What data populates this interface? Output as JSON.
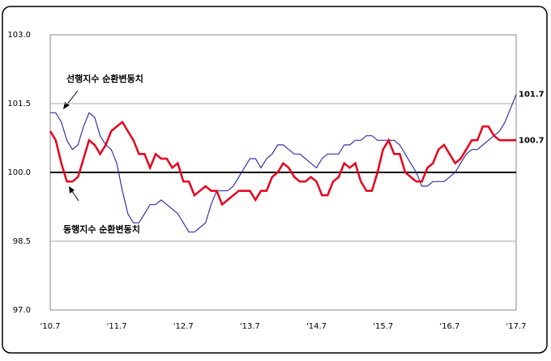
{
  "chart_data": {
    "type": "line",
    "categories": [
      "'10.7",
      null,
      null,
      null,
      null,
      null,
      null,
      null,
      null,
      null,
      null,
      null,
      "'11.7",
      null,
      null,
      null,
      null,
      null,
      null,
      null,
      null,
      null,
      null,
      null,
      "'12.7",
      null,
      null,
      null,
      null,
      null,
      null,
      null,
      null,
      null,
      null,
      null,
      "'13.7",
      null,
      null,
      null,
      null,
      null,
      null,
      null,
      null,
      null,
      null,
      null,
      "'14.7",
      null,
      null,
      null,
      null,
      null,
      null,
      null,
      null,
      null,
      null,
      null,
      "'15.7",
      null,
      null,
      null,
      null,
      null,
      null,
      null,
      null,
      null,
      null,
      null,
      "'16.7",
      null,
      null,
      null,
      null,
      null,
      null,
      null,
      null,
      null,
      null,
      null,
      "'17.7"
    ],
    "series": [
      {
        "name": "선행지수 순환변동치",
        "color": "#3333aa",
        "values": [
          101.3,
          101.3,
          101.1,
          100.7,
          100.5,
          100.6,
          101.0,
          101.3,
          101.2,
          100.8,
          100.6,
          100.5,
          100.2,
          99.6,
          99.1,
          98.9,
          98.9,
          99.1,
          99.3,
          99.3,
          99.4,
          99.3,
          99.2,
          99.1,
          98.9,
          98.7,
          98.7,
          98.8,
          98.9,
          99.3,
          99.6,
          99.6,
          99.6,
          99.7,
          99.9,
          100.1,
          100.3,
          100.3,
          100.1,
          100.3,
          100.4,
          100.6,
          100.6,
          100.5,
          100.4,
          100.4,
          100.3,
          100.2,
          100.1,
          100.3,
          100.4,
          100.4,
          100.4,
          100.6,
          100.6,
          100.7,
          100.7,
          100.8,
          100.8,
          100.7,
          100.7,
          100.7,
          100.7,
          100.6,
          100.4,
          100.2,
          100.0,
          99.7,
          99.7,
          99.8,
          99.8,
          99.8,
          99.9,
          100.0,
          100.2,
          100.4,
          100.5,
          100.5,
          100.6,
          100.7,
          100.8,
          100.9,
          101.1,
          101.4,
          101.7
        ],
        "value_labels": [
          null,
          null,
          null,
          null,
          null,
          null,
          null,
          null,
          null,
          null,
          null,
          null,
          null,
          null,
          null,
          null,
          null,
          null,
          null,
          null,
          null,
          null,
          null,
          null,
          null,
          null,
          null,
          null,
          null,
          null,
          null,
          null,
          null,
          null,
          null,
          null,
          null,
          null,
          null,
          null,
          null,
          null,
          null,
          null,
          null,
          null,
          null,
          null,
          null,
          null,
          null,
          null,
          null,
          null,
          null,
          null,
          null,
          null,
          null,
          null,
          null,
          null,
          null,
          null,
          null,
          null,
          null,
          null,
          null,
          null,
          null,
          null,
          null,
          null,
          null,
          null,
          null,
          null,
          null,
          null,
          null,
          null,
          null,
          null,
          "101.7"
        ]
      },
      {
        "name": "동행지수 순환변동치",
        "color": "#e8001c",
        "values": [
          100.9,
          100.7,
          100.2,
          99.8,
          99.8,
          99.9,
          100.3,
          100.7,
          100.6,
          100.4,
          100.6,
          100.9,
          101.0,
          101.1,
          100.9,
          100.7,
          100.4,
          100.4,
          100.1,
          100.4,
          100.3,
          100.3,
          100.1,
          100.2,
          99.8,
          99.8,
          99.5,
          99.6,
          99.7,
          99.6,
          99.6,
          99.3,
          99.4,
          99.5,
          99.6,
          99.6,
          99.6,
          99.4,
          99.6,
          99.6,
          99.9,
          100.0,
          100.2,
          100.1,
          99.9,
          99.8,
          99.8,
          99.9,
          99.8,
          99.5,
          99.5,
          99.8,
          99.9,
          100.2,
          100.1,
          100.2,
          99.8,
          99.6,
          99.6,
          100.0,
          100.5,
          100.7,
          100.4,
          100.4,
          100.0,
          99.9,
          99.8,
          99.8,
          100.1,
          100.2,
          100.5,
          100.6,
          100.4,
          100.2,
          100.3,
          100.5,
          100.7,
          100.7,
          101.0,
          101.0,
          100.8,
          100.7,
          100.7,
          100.7,
          100.7
        ],
        "value_labels": [
          null,
          null,
          null,
          null,
          null,
          null,
          null,
          null,
          null,
          null,
          null,
          null,
          null,
          null,
          null,
          null,
          null,
          null,
          null,
          null,
          null,
          null,
          null,
          null,
          null,
          null,
          null,
          null,
          null,
          null,
          null,
          null,
          null,
          null,
          null,
          null,
          null,
          null,
          null,
          null,
          null,
          null,
          null,
          null,
          null,
          null,
          null,
          null,
          null,
          null,
          null,
          null,
          null,
          null,
          null,
          null,
          null,
          null,
          null,
          null,
          null,
          null,
          null,
          null,
          null,
          null,
          null,
          null,
          null,
          null,
          null,
          null,
          null,
          null,
          null,
          null,
          null,
          null,
          null,
          null,
          null,
          null,
          null,
          null,
          "100.7"
        ]
      }
    ],
    "ylim": [
      97,
      103
    ],
    "yticks": [
      {
        "value": 97,
        "label": "97.0"
      },
      98.5,
      {
        "value": 100,
        "label": "100.0"
      },
      101.5,
      {
        "value": 103,
        "label": "103.0"
      }
    ],
    "grid": true,
    "baseline": 100
  }
}
